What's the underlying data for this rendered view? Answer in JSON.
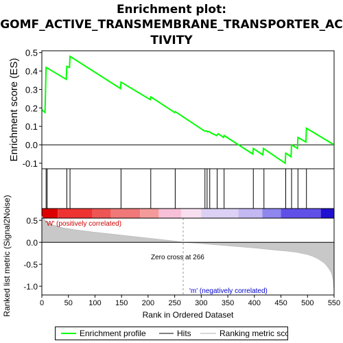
{
  "title_lines": [
    "Enrichment plot:",
    "GOMF_ACTIVE_TRANSMEMBRANE_TRANSPORTER_AC",
    "TIVITY"
  ],
  "chart_data": {
    "type": "line",
    "top_panel": {
      "ylabel": "Enrichment score (ES)",
      "ylim": [
        -0.13,
        0.51
      ],
      "yticks": [
        -0.1,
        0.0,
        0.1,
        0.2,
        0.3,
        0.4,
        0.5
      ],
      "ytick_labels": [
        "-0.1",
        "0.0",
        "0.1",
        "0.2",
        "0.3",
        "0.4",
        "0.5"
      ],
      "series": [
        {
          "name": "Enrichment profile",
          "color": "#00ff00",
          "x": [
            0,
            6,
            8,
            46,
            47,
            52,
            53,
            148,
            149,
            204,
            205,
            250,
            251,
            306,
            310,
            312,
            315,
            318,
            329,
            332,
            342,
            343,
            397,
            398,
            416,
            417,
            458,
            459,
            469,
            470,
            481,
            482,
            497,
            498,
            550
          ],
          "y": [
            0.19,
            0.175,
            0.42,
            0.355,
            0.425,
            0.42,
            0.48,
            0.305,
            0.34,
            0.245,
            0.26,
            0.175,
            0.18,
            0.075,
            0.075,
            0.07,
            0.072,
            0.065,
            0.05,
            0.06,
            0.04,
            0.05,
            -0.05,
            -0.02,
            -0.055,
            -0.02,
            -0.1,
            -0.045,
            -0.065,
            0.0,
            -0.02,
            0.04,
            0.015,
            0.09,
            0.0
          ]
        }
      ]
    },
    "hits": {
      "name": "Hits",
      "positions": [
        8,
        10,
        47,
        53,
        149,
        205,
        251,
        307,
        311,
        316,
        330,
        343,
        398,
        418,
        459,
        470,
        482,
        498
      ]
    },
    "ranking_bar": {
      "segments": [
        {
          "from": 0,
          "to": 30,
          "color": "#dd0000"
        },
        {
          "from": 30,
          "to": 95,
          "color": "#ee3333"
        },
        {
          "from": 95,
          "to": 130,
          "color": "#ee5555"
        },
        {
          "from": 130,
          "to": 185,
          "color": "#f07878"
        },
        {
          "from": 185,
          "to": 220,
          "color": "#f49a9a"
        },
        {
          "from": 220,
          "to": 262,
          "color": "#f8c0d8"
        },
        {
          "from": 262,
          "to": 300,
          "color": "#f7dff0"
        },
        {
          "from": 300,
          "to": 370,
          "color": "#dcd0f4"
        },
        {
          "from": 370,
          "to": 415,
          "color": "#c4b8f2"
        },
        {
          "from": 415,
          "to": 450,
          "color": "#8f86ee"
        },
        {
          "from": 450,
          "to": 525,
          "color": "#6050e8"
        },
        {
          "from": 525,
          "to": 550,
          "color": "#2010d0"
        }
      ]
    },
    "bottom_panel": {
      "ylabel": "Ranked list metric (Signal2Noise)",
      "xlabel": "Rank in Ordered Dataset",
      "xlim": [
        0,
        550
      ],
      "xticks": [
        0,
        50,
        100,
        150,
        200,
        250,
        300,
        350,
        400,
        450,
        500,
        550
      ],
      "xtick_labels": [
        "0",
        "50",
        "100",
        "150",
        "200",
        "250",
        "300",
        "350",
        "400",
        "450",
        "500",
        "550"
      ],
      "ylim": [
        -1.2,
        0.55
      ],
      "yticks": [
        -1.0,
        -0.5,
        0.0,
        0.5
      ],
      "ytick_labels": [
        "-1.0",
        "-0.5",
        "0.0",
        "0.5"
      ],
      "metric": {
        "x": [
          0,
          5,
          10,
          20,
          40,
          60,
          80,
          100,
          130,
          160,
          190,
          220,
          250,
          266,
          290,
          320,
          350,
          380,
          410,
          440,
          460,
          480,
          500,
          510,
          520,
          530,
          535,
          540,
          545,
          548,
          550
        ],
        "y": [
          0.6,
          0.52,
          0.46,
          0.4,
          0.33,
          0.29,
          0.26,
          0.23,
          0.19,
          0.15,
          0.11,
          0.07,
          0.03,
          0.0,
          -0.02,
          -0.05,
          -0.08,
          -0.11,
          -0.14,
          -0.18,
          -0.2,
          -0.23,
          -0.28,
          -0.32,
          -0.38,
          -0.46,
          -0.52,
          -0.6,
          -0.7,
          -0.85,
          -1.12
        ]
      },
      "zero_cross": 266,
      "annotations": {
        "positive": "'W' (positively correlated)",
        "negative": "'m' (negatively correlated)",
        "zero_cross": "Zero cross at 266"
      }
    },
    "legend": [
      {
        "label": "Enrichment profile",
        "color": "#00ff00"
      },
      {
        "label": "Hits",
        "color": "#808080"
      },
      {
        "label": "Ranking metric scores",
        "color": "#d8d8d8"
      }
    ]
  }
}
